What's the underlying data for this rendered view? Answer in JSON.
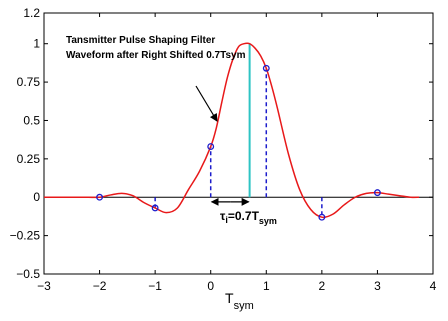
{
  "chart_data": {
    "type": "line",
    "xlim": [
      -3,
      4
    ],
    "ylim": [
      -0.5,
      1.2
    ],
    "x_ticks": [
      "−3",
      "−2",
      "−1",
      "0",
      "1",
      "2",
      "3",
      "4"
    ],
    "y_ticks": [
      "−0.5",
      "−0.25",
      "0",
      "0.25",
      "0.5",
      "0.75",
      "1",
      "1.2"
    ],
    "xlabel": {
      "main": "T",
      "sub": "sym"
    },
    "ylabel": "",
    "grid": false,
    "series": [
      {
        "style": "line",
        "color": "#e8191a",
        "x": [
          -3.0,
          -2.8,
          -2.6,
          -2.4,
          -2.2,
          -2.0,
          -1.8,
          -1.6,
          -1.4,
          -1.2,
          -1.0,
          -0.8,
          -0.6,
          -0.4,
          -0.2,
          0.0,
          0.1,
          0.2,
          0.3,
          0.4,
          0.5,
          0.6,
          0.7,
          0.8,
          0.9,
          1.0,
          1.1,
          1.2,
          1.4,
          1.6,
          1.8,
          2.0,
          2.2,
          2.4,
          2.6,
          2.8,
          3.0,
          3.2,
          3.4,
          3.6,
          3.75
        ],
        "y": [
          0.0,
          0.0,
          0.0,
          0.0,
          0.0,
          0.0,
          0.015,
          0.025,
          0.01,
          -0.035,
          -0.07,
          -0.1,
          -0.07,
          0.05,
          0.17,
          0.33,
          0.45,
          0.62,
          0.78,
          0.9,
          0.98,
          1.0,
          1.0,
          0.97,
          0.92,
          0.84,
          0.72,
          0.58,
          0.28,
          0.05,
          -0.08,
          -0.13,
          -0.11,
          -0.05,
          0.0,
          0.025,
          0.03,
          0.02,
          0.01,
          0.0,
          0.0
        ]
      },
      {
        "style": "markers",
        "color": "#1d1dcc",
        "x": [
          -2,
          -1,
          0,
          1,
          2,
          3
        ],
        "y": [
          0.0,
          -0.07,
          0.33,
          0.84,
          -0.13,
          0.03
        ]
      }
    ],
    "sample_stems": [
      {
        "x": -1,
        "y": -0.07
      },
      {
        "x": 0,
        "y": 0.33
      },
      {
        "x": 1,
        "y": 0.84
      },
      {
        "x": 2,
        "y": -0.13
      }
    ],
    "peak_line": {
      "x": 0.7,
      "y": 1.0,
      "color": "#2ec4c4"
    },
    "stem_color": "#1d1dcc",
    "annotation": {
      "line1": "Tansmitter Pulse Shaping Filter",
      "line2": "Waveform after Right Shifted 0.7Tsym"
    },
    "shift_label": {
      "tau": "τ",
      "sub1": "i",
      "eq": "=0.7T",
      "sub2": "sym",
      "from_x": 0,
      "to_x": 0.7,
      "y": -0.03
    }
  }
}
